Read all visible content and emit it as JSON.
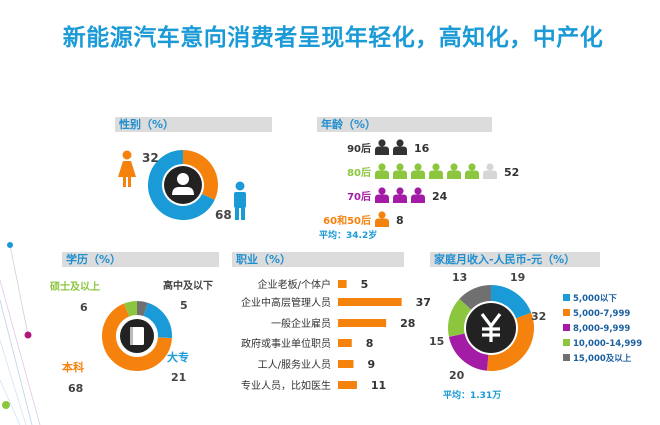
{
  "title": "新能源汽车意向消费者呈现年轻化，高知化，中产化",
  "colors": {
    "blue": "#1a9ad6",
    "orange": "#f4820c",
    "green": "#8cc63f",
    "purple": "#a41ba6",
    "gray": "#707070",
    "dark": "#222222",
    "header_bg": "#dcdcdc"
  },
  "chart_data": [
    {
      "type": "pie",
      "title": "性别（%）",
      "donut": true,
      "series": [
        {
          "name": "女",
          "value": 32,
          "color": "#f4820c"
        },
        {
          "name": "男",
          "value": 68,
          "color": "#1a9ad6"
        }
      ],
      "icons": [
        "female-icon",
        "male-icon",
        "person-center-icon"
      ]
    },
    {
      "type": "bar",
      "title": "年龄（%）",
      "icon": "person-icon",
      "categories": [
        "90后",
        "80后",
        "70后",
        "60和50后"
      ],
      "values": [
        16,
        52,
        24,
        8
      ],
      "category_colors": [
        "#333333",
        "#8cc63f",
        "#a41ba6",
        "#f4820c"
      ],
      "average_label": "平均：34.2岁"
    },
    {
      "type": "pie",
      "title": "学历（%）",
      "donut": true,
      "series": [
        {
          "name": "高中及以下",
          "value": 5,
          "color": "#707070"
        },
        {
          "name": "大专",
          "value": 21,
          "color": "#1a9ad6"
        },
        {
          "name": "本科",
          "value": 68,
          "color": "#f4820c"
        },
        {
          "name": "硕士及以上",
          "value": 6,
          "color": "#8cc63f"
        }
      ],
      "icons": [
        "book-icon"
      ]
    },
    {
      "type": "bar",
      "title": "职业（%）",
      "orientation": "horizontal",
      "categories": [
        "企业老板/个体户",
        "企业中高层管理人员",
        "一般企业雇员",
        "政府或事业单位职员",
        "工人/服务业人员",
        "专业人员，比如医生"
      ],
      "values": [
        5,
        37,
        28,
        8,
        9,
        11
      ],
      "color": "#f4820c"
    },
    {
      "type": "pie",
      "title": "家庭月收入-人民币-元（%）",
      "donut": true,
      "series": [
        {
          "name": "5,000以下",
          "value": 19,
          "color": "#1a9ad6"
        },
        {
          "name": "5,000-7,999",
          "value": 32,
          "color": "#f4820c"
        },
        {
          "name": "8,000-9,999",
          "value": 20,
          "color": "#a41ba6"
        },
        {
          "name": "10,000-14,999",
          "value": 15,
          "color": "#8cc63f"
        },
        {
          "name": "15,000及以上",
          "value": 13,
          "color": "#707070"
        }
      ],
      "icons": [
        "yuan-icon"
      ],
      "average_label": "平均：1.31万",
      "legend": "right"
    }
  ]
}
